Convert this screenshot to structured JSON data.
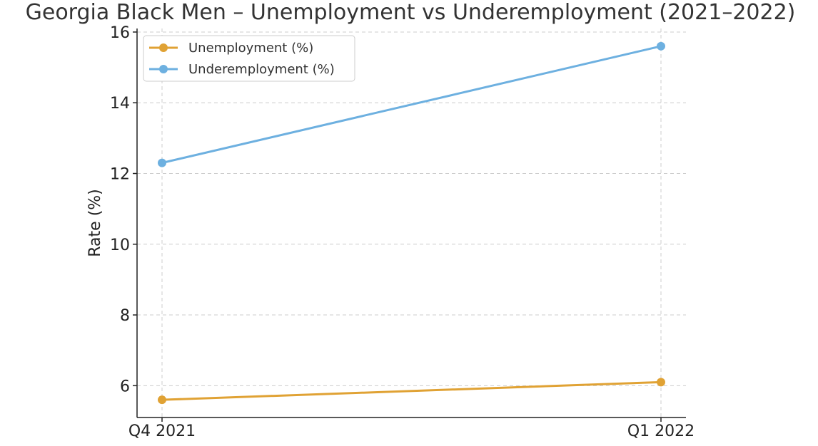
{
  "chart_data": {
    "type": "line",
    "title": "Georgia Black Men – Unemployment vs Underemployment (2021–2022)",
    "xlabel": "",
    "ylabel": "Rate (%)",
    "categories": [
      "Q4 2021",
      "Q1 2022"
    ],
    "ylim": [
      5.1,
      16.1
    ],
    "yticks": [
      6,
      8,
      10,
      12,
      14,
      16
    ],
    "grid": true,
    "legend_position": "top-left",
    "series": [
      {
        "name": "Unemployment (%)",
        "values": [
          5.6,
          6.1
        ],
        "color": "#E0A234"
      },
      {
        "name": "Underemployment (%)",
        "values": [
          12.3,
          15.6
        ],
        "color": "#6DB0E0"
      }
    ]
  }
}
